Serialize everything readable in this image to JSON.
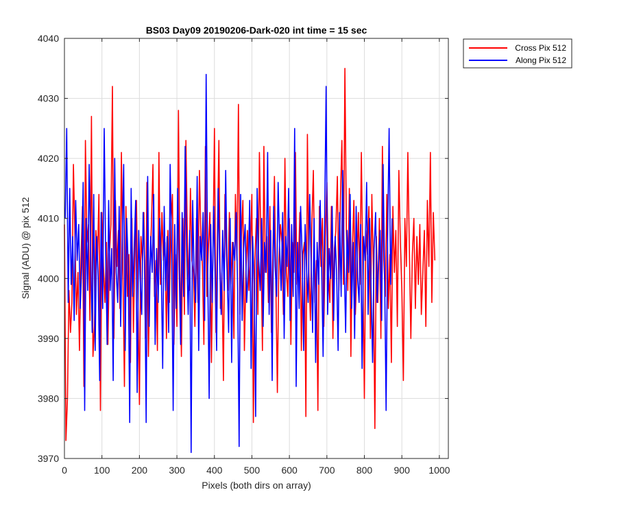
{
  "chart_data": {
    "type": "line",
    "title": "BS03 Day09 20190206-Dark-020 int time = 15 sec",
    "xlabel": "Pixels (both dirs on array)",
    "ylabel": "Signal (ADU) @ pix 512",
    "xlim": [
      0,
      1024
    ],
    "ylim": [
      3970,
      4040
    ],
    "xticks": [
      0,
      100,
      200,
      300,
      400,
      500,
      600,
      700,
      800,
      900,
      1000
    ],
    "yticks": [
      3970,
      3980,
      3990,
      4000,
      4010,
      4020,
      4030,
      4040
    ],
    "grid": true,
    "legend_position": "outside-top-right",
    "series": [
      {
        "name": "Cross Pix 512",
        "color": "#ff0000",
        "x_start": 0,
        "x_step": 4,
        "values": [
          4009,
          3973,
          3980,
          3998,
          3991,
          3996,
          4019,
          4007,
          3994,
          4001,
          3988,
          4003,
          4012,
          3982,
          4023,
          4006,
          4009,
          3993,
          4027,
          3987,
          3992,
          4008,
          4003,
          4014,
          3978,
          4011,
          4002,
          3996,
          4006,
          3989,
          4004,
          4009,
          4032,
          3990,
          4013,
          4002,
          4008,
          3995,
          4021,
          4001,
          3982,
          4012,
          3997,
          4004,
          3986,
          4010,
          3991,
          4005,
          4013,
          3996,
          3979,
          4007,
          4003,
          4011,
          3990,
          4016,
          3987,
          4002,
          4009,
          4019,
          3997,
          4003,
          3988,
          4021,
          3999,
          4011,
          4003,
          4006,
          3990,
          4008,
          3996,
          4009,
          4014,
          3989,
          4004,
          3992,
          4028,
          4001,
          3987,
          4010,
          3994,
          4023,
          4006,
          3998,
          4015,
          4003,
          4001,
          3992,
          4010,
          3996,
          4018,
          4007,
          4002,
          3989,
          4022,
          3997,
          4005,
          4011,
          3986,
          4004,
          4025,
          3991,
          4007,
          4023,
          3995,
          4001,
          3983,
          4014,
          4004,
          3998,
          4011,
          3999,
          4006,
          3990,
          4014,
          4003,
          4029,
          3994,
          4007,
          4013,
          3988,
          4001,
          4008,
          3998,
          4005,
          4014,
          3976,
          4003,
          4010,
          3994,
          4021,
          4006,
          3988,
          4022,
          4001,
          4007,
          3996,
          4012,
          3991,
          4005,
          4017,
          3999,
          3981,
          4003,
          4009,
          4006,
          3994,
          4020,
          4001,
          3997,
          4010,
          3989,
          4006,
          4001,
          4021,
          3999,
          4002,
          4011,
          3988,
          4004,
          4006,
          3977,
          4024,
          4001,
          3993,
          4009,
          4018,
          3996,
          4003,
          3978,
          4012,
          4002,
          4010,
          3992,
          4007,
          4016,
          4001,
          3996,
          4012,
          3990,
          4005,
          4008,
          4017,
          3998,
          4013,
          4023,
          3999,
          4035,
          4008,
          3998,
          4015,
          3987,
          4005,
          4013,
          3994,
          4002,
          4011,
          3999,
          4021,
          4001,
          3980,
          4008,
          4004,
          4012,
          3990,
          4014,
          4002,
          3975,
          4007,
          3996,
          4010,
          3990,
          4022,
          4003,
          3997,
          4014,
          3995,
          4004,
          3986,
          4012,
          4001,
          4008,
          3992,
          4018,
          4006,
          3998,
          3983,
          4010,
          4002,
          4021,
          4005,
          3990,
          4004,
          4010,
          3995,
          4007,
          3999,
          4009,
          3994,
          4001,
          4008,
          3992,
          4013,
          4002,
          4021,
          3996,
          4011,
          4003
        ]
      },
      {
        "name": "Along Pix 512",
        "color": "#0000ff",
        "x_start": 2,
        "x_step": 4,
        "values": [
          4010,
          4025,
          3996,
          4015,
          3999,
          4007,
          3993,
          4013,
          4003,
          4009,
          3995,
          4002,
          4016,
          3978,
          4010,
          3998,
          4019,
          4004,
          3991,
          4014,
          3988,
          4007,
          4000,
          3983,
          4011,
          3995,
          4025,
          4004,
          3989,
          4013,
          3998,
          4005,
          3983,
          4020,
          4001,
          3996,
          4012,
          3992,
          4006,
          4019,
          3988,
          4010,
          4002,
          3976,
          4015,
          3997,
          4005,
          4013,
          3981,
          4008,
          4000,
          3994,
          4011,
          4003,
          3976,
          4017,
          3992,
          4007,
          4001,
          4014,
          3989,
          4005,
          3996,
          4010,
          4003,
          3985,
          4012,
          3998,
          4007,
          3991,
          4019,
          4004,
          3978,
          4009,
          3995,
          4015,
          4002,
          3989,
          4011,
          3997,
          4022,
          4005,
          3994,
          4008,
          3971,
          4013,
          4001,
          3996,
          4017,
          3988,
          4007,
          4003,
          4011,
          3993,
          4034,
          4002,
          3980,
          4009,
          3996,
          4012,
          4001,
          3988,
          4015,
          4003,
          3994,
          4008,
          3998,
          4018,
          4001,
          3991,
          4010,
          3986,
          4006,
          4003,
          4011,
          3998,
          3972,
          4014,
          3993,
          4005,
          4009,
          3996,
          4001,
          4013,
          3985,
          4007,
          3999,
          3977,
          4015,
          4003,
          3998,
          4010,
          3992,
          4006,
          4001,
          4021,
          3994,
          4008,
          3983,
          4012,
          4002,
          3997,
          4016,
          4005,
          3998,
          4011,
          3990,
          4007,
          4002,
          4015,
          3993,
          4009,
          3997,
          4025,
          3982,
          4006,
          3995,
          4012,
          4004,
          3988,
          4009,
          4001,
          3996,
          4014,
          4003,
          3991,
          4010,
          3986,
          4006,
          3999,
          4013,
          4002,
          3987,
          4009,
          4032,
          3994,
          4005,
          4000,
          4012,
          3993,
          4007,
          4001,
          3988,
          4011,
          3997,
          4018,
          4003,
          3991,
          4008,
          4001,
          4014,
          3995,
          4006,
          3990,
          4012,
          4000,
          3996,
          4009,
          3985,
          4007,
          4003,
          4016,
          3994,
          4010,
          3998,
          3986,
          4005,
          4011,
          3996,
          4003,
          4008,
          3993,
          4019,
          4001,
          3978,
          4007,
          4025,
          3999,
          4010
        ]
      }
    ]
  }
}
